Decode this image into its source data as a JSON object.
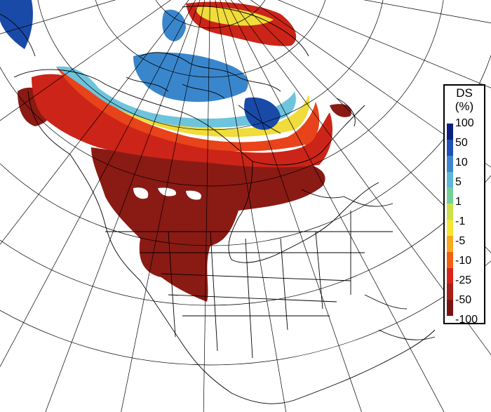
{
  "legend": {
    "title": "DS",
    "unit": "(%)",
    "labels": [
      "100",
      "50",
      "10",
      "5",
      "1",
      "-1",
      "-5",
      "-10",
      "-25",
      "-50",
      "-100"
    ],
    "colors": [
      "#0a1f80",
      "#1f4fb8",
      "#3f86d0",
      "#5fb6d8",
      "#74cf9c",
      "#cde04a",
      "#f5e632",
      "#f8aa1e",
      "#f26014",
      "#d8261a",
      "#a81f18",
      "#7a1412"
    ]
  },
  "palette": {
    "deep_red": "#8a1a14",
    "red": "#cc2418",
    "orange_red": "#e8431a",
    "orange": "#f28a1f",
    "yellow": "#f0dc3a",
    "light_blue": "#6ec4dc",
    "mid_blue": "#3a86cc",
    "dark_blue": "#1a4aa8",
    "lines": "#000000"
  }
}
